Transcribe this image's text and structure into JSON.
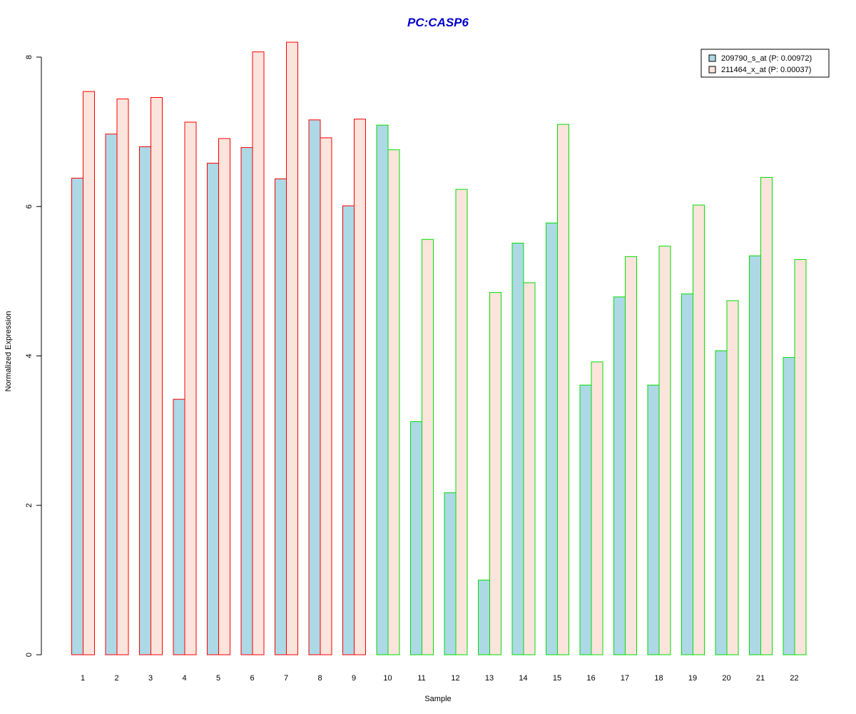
{
  "chart_data": {
    "type": "bar",
    "title": "PC:CASP6",
    "xlabel": "Sample",
    "ylabel": "Normalized Expression",
    "ylim": [
      0,
      8
    ],
    "yticks": [
      0,
      2,
      4,
      6,
      8
    ],
    "grid": false,
    "legend_position": "top-right",
    "categories": [
      "1",
      "2",
      "3",
      "4",
      "5",
      "6",
      "7",
      "8",
      "9",
      "10",
      "11",
      "12",
      "13",
      "14",
      "15",
      "16",
      "17",
      "18",
      "19",
      "20",
      "21",
      "22"
    ],
    "series": [
      {
        "name": "209790_s_at (P: 0.00972)",
        "fill": "#add8e6",
        "values": [
          6.38,
          6.97,
          6.8,
          3.42,
          6.58,
          6.79,
          6.37,
          7.16,
          6.01,
          7.09,
          3.12,
          2.17,
          1.0,
          5.51,
          5.78,
          3.61,
          4.79,
          3.61,
          4.83,
          4.07,
          5.34,
          3.98
        ]
      },
      {
        "name": "211464_x_at (P: 0.00037)",
        "fill": "#fbe4dc",
        "values": [
          7.54,
          7.44,
          7.46,
          7.13,
          6.91,
          8.07,
          8.2,
          6.92,
          7.17,
          6.76,
          5.56,
          6.23,
          4.85,
          4.98,
          7.1,
          3.92,
          5.33,
          5.47,
          6.02,
          4.74,
          6.39,
          5.29
        ]
      }
    ],
    "group_border_colors": [
      "#ff0000",
      "#ff0000",
      "#ff0000",
      "#ff0000",
      "#ff0000",
      "#ff0000",
      "#ff0000",
      "#ff0000",
      "#ff0000",
      "#00e000",
      "#00e000",
      "#00e000",
      "#00e000",
      "#00e000",
      "#00e000",
      "#00e000",
      "#00e000",
      "#00e000",
      "#00e000",
      "#00e000",
      "#00e000",
      "#00e000"
    ],
    "title_color": "#0000cc"
  }
}
